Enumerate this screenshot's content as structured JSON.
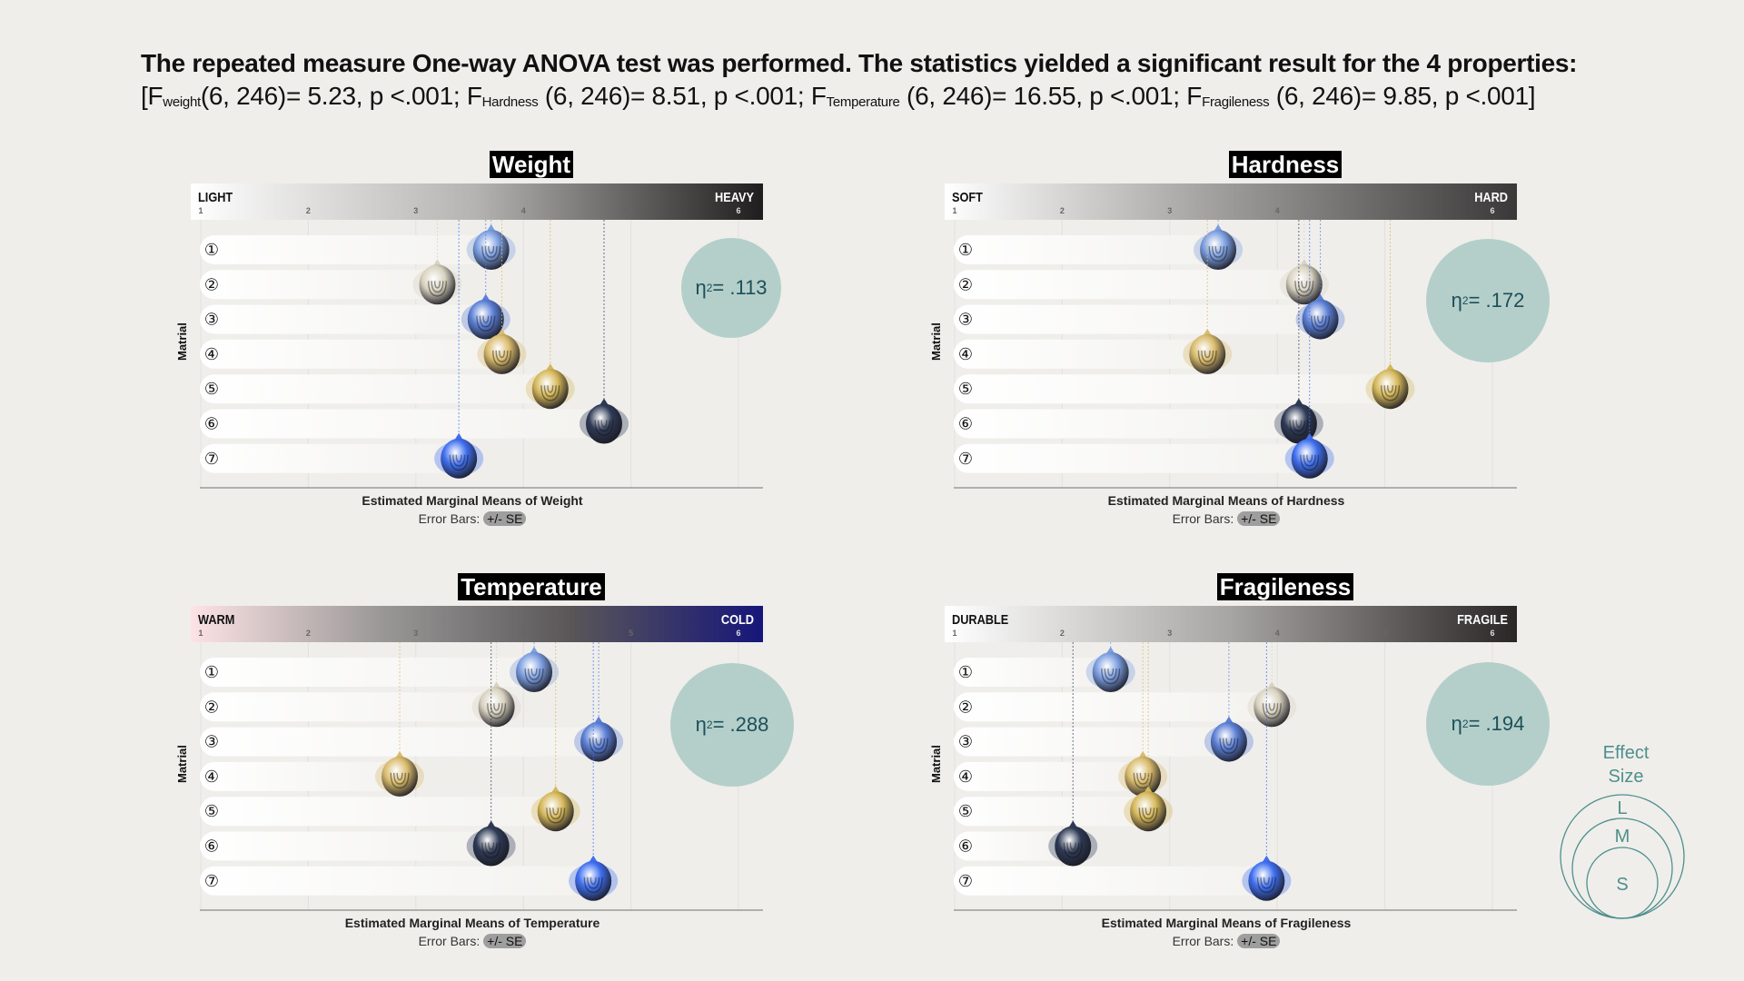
{
  "headline": {
    "line1": "The repeated measure One-way ANOVA test was performed. The statistics yielded a significant result for the 4 properties:",
    "line2_parts": [
      {
        "text": "[F",
        "sub": "weight",
        "rest": "(6, 246)= 5.23, p <.001; "
      },
      {
        "text": "F",
        "sub": "Hardness",
        "rest": " (6, 246)= 8.51, p <.001; "
      },
      {
        "text": "F",
        "sub": "Temperature",
        "rest": " (6, 246)= 16.55, p <.001; "
      },
      {
        "text": "F",
        "sub": "Fragileness",
        "rest": " (6, 246)= 9.85, p <.001]"
      }
    ]
  },
  "common": {
    "ylabel": "Matrial",
    "error_bars_label": "Error Bars:",
    "error_bars_value": "+/- SE",
    "row_labels": [
      "①",
      "②",
      "③",
      "④",
      "⑤",
      "⑥",
      "⑦"
    ],
    "ticks": [
      "1",
      "2",
      "3",
      "4",
      "5",
      "6"
    ],
    "ball_colors": [
      "#7b9ee0",
      "#d8d2bf",
      "#5b7fd6",
      "#d9bb6c",
      "#d6b85a",
      "#2e3a55",
      "#3f6ff0"
    ]
  },
  "chart_data": [
    {
      "type": "scatter",
      "title": "Weight",
      "left_label": "LIGHT",
      "right_label": "HEAVY",
      "gradient": [
        "#ffffff",
        "#b5b3b1",
        "#1f1d1d"
      ],
      "xlabel": "Estimated Marginal Means of Weight",
      "xlim": [
        1,
        6
      ],
      "categories": [
        "1",
        "2",
        "3",
        "4",
        "5",
        "6",
        "7"
      ],
      "values": [
        3.7,
        3.2,
        3.65,
        3.8,
        4.25,
        4.75,
        3.4
      ],
      "effect_size_label": "η",
      "effect_size_value": " = .113"
    },
    {
      "type": "scatter",
      "title": "Hardness",
      "left_label": "SOFT",
      "right_label": "HARD",
      "gradient": [
        "#ffffff",
        "#9c9a98",
        "#3a3838"
      ],
      "xlabel": "Estimated Marginal Means of Hardness",
      "xlim": [
        1,
        6
      ],
      "categories": [
        "1",
        "2",
        "3",
        "4",
        "5",
        "6",
        "7"
      ],
      "values": [
        3.45,
        4.25,
        4.4,
        3.35,
        5.05,
        4.2,
        4.3
      ],
      "effect_size_label": "η",
      "effect_size_value": " = .172"
    },
    {
      "type": "scatter",
      "title": "Temperature",
      "left_label": "WARM",
      "right_label": "COLD",
      "gradient": [
        "#fde3e5",
        "#9a9897",
        "#595658",
        "#16167a"
      ],
      "xlabel": "Estimated Marginal Means of Temperature",
      "xlim": [
        1,
        6
      ],
      "categories": [
        "1",
        "2",
        "3",
        "4",
        "5",
        "6",
        "7"
      ],
      "values": [
        4.1,
        3.75,
        4.7,
        2.85,
        4.3,
        3.7,
        4.65
      ],
      "effect_size_label": "η",
      "effect_size_value": " = .288"
    },
    {
      "type": "scatter",
      "title": "Fragileness",
      "left_label": "DURABLE",
      "right_label": "FRAGILE",
      "gradient": [
        "#ffffff",
        "#a7a5a3",
        "#2a2627"
      ],
      "xlabel": "Estimated Marginal Means of Fragileness",
      "xlim": [
        1,
        6
      ],
      "categories": [
        "1",
        "2",
        "3",
        "4",
        "5",
        "6",
        "7"
      ],
      "values": [
        2.45,
        3.95,
        3.55,
        2.75,
        2.8,
        2.1,
        3.9
      ],
      "effect_size_label": "η",
      "effect_size_value": " = .194"
    }
  ],
  "legend": {
    "title_line1": "Effect",
    "title_line2": "Size",
    "large": "L",
    "medium": "M",
    "small": "S",
    "color": "#4f8f8c"
  }
}
